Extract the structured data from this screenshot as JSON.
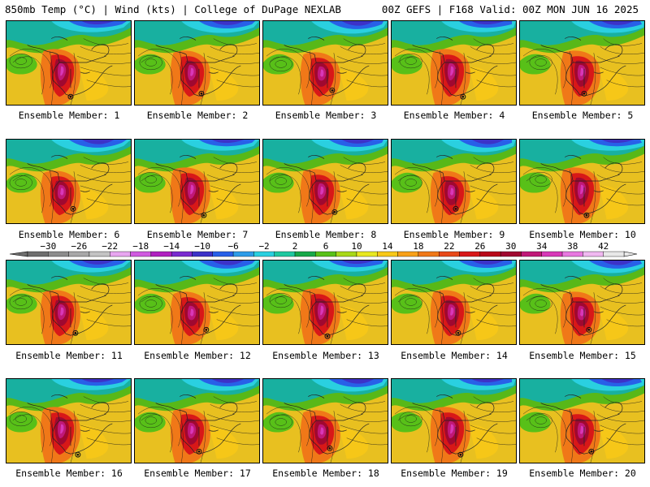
{
  "header": {
    "left": "850mb Temp (°C) | Wind (kts) | College of DuPage NEXLAB",
    "right": "00Z GEFS | F168 Valid: 00Z MON JUN 16 2025"
  },
  "members": [
    {
      "label": "Ensemble Member: 1"
    },
    {
      "label": "Ensemble Member: 2"
    },
    {
      "label": "Ensemble Member: 3"
    },
    {
      "label": "Ensemble Member: 4"
    },
    {
      "label": "Ensemble Member: 5"
    },
    {
      "label": "Ensemble Member: 6"
    },
    {
      "label": "Ensemble Member: 7"
    },
    {
      "label": "Ensemble Member: 8"
    },
    {
      "label": "Ensemble Member: 9"
    },
    {
      "label": "Ensemble Member: 10"
    },
    {
      "label": "Ensemble Member: 11"
    },
    {
      "label": "Ensemble Member: 12"
    },
    {
      "label": "Ensemble Member: 13"
    },
    {
      "label": "Ensemble Member: 14"
    },
    {
      "label": "Ensemble Member: 15"
    },
    {
      "label": "Ensemble Member: 16"
    },
    {
      "label": "Ensemble Member: 17"
    },
    {
      "label": "Ensemble Member: 18"
    },
    {
      "label": "Ensemble Member: 19"
    },
    {
      "label": "Ensemble Member: 20"
    }
  ],
  "colorbar": {
    "labels": [
      "-30",
      "-26",
      "-22",
      "-18",
      "-14",
      "-10",
      "-6",
      "-2",
      "2",
      "6",
      "10",
      "14",
      "18",
      "22",
      "26",
      "30",
      "34",
      "38",
      "42"
    ],
    "colors": [
      "#6e6e6e",
      "#8c8c8c",
      "#a8a8a8",
      "#c3c3c3",
      "#e8a6f0",
      "#d05ae0",
      "#b020c0",
      "#7a2bd0",
      "#3c32c8",
      "#2860e8",
      "#2e9ce8",
      "#2ad0e0",
      "#20c8a0",
      "#18a848",
      "#58c018",
      "#a8d818",
      "#e8e820",
      "#f8c818",
      "#f8a018",
      "#f07818",
      "#e84818",
      "#d81818",
      "#b80818",
      "#a00830",
      "#c01878",
      "#d838b8",
      "#e878e0",
      "#f0b8f0",
      "#e8e8e8"
    ]
  }
}
